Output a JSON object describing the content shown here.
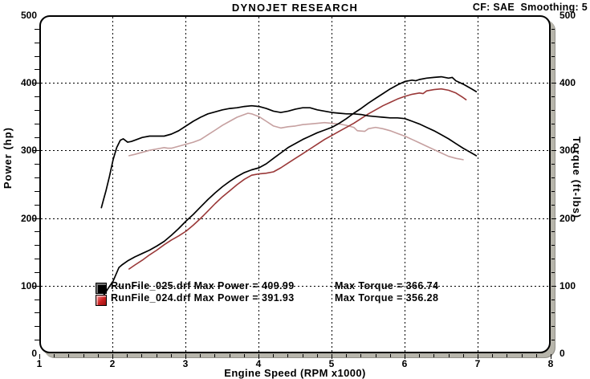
{
  "header": {
    "title": "DYNOJET RESEARCH",
    "cf_smoothing": "CF: SAE  Smoothing: 5"
  },
  "chart_data": {
    "type": "line",
    "title": "DYNOJET RESEARCH",
    "correction_factor": "CF: SAE",
    "smoothing": "Smoothing: 5",
    "xlabel": "Engine Speed (RPM x1000)",
    "ylabel_left": "Power (hp)",
    "ylabel_right": "Torque (ft-lbs)",
    "xlim": [
      1,
      8
    ],
    "ylim_left": [
      0,
      500
    ],
    "ylim_right": [
      0,
      500
    ],
    "x_ticks": [
      1,
      2,
      3,
      4,
      5,
      6,
      7,
      8
    ],
    "y_ticks": [
      0,
      100,
      200,
      300,
      400,
      500
    ],
    "x_minor_step": 0.2,
    "y_minor_step": 20,
    "grid": "dashed-at-major-ticks",
    "legend_position": "inside-lower-left",
    "series": [
      {
        "id": "curve-runfile024-torque",
        "name": "RunFile_024.drf Torque (ft-lbs)",
        "color": "#c6a0a0",
        "width": 1.6,
        "points": [
          [
            2.22,
            293
          ],
          [
            2.3,
            295
          ],
          [
            2.4,
            298
          ],
          [
            2.5,
            301
          ],
          [
            2.6,
            303
          ],
          [
            2.7,
            305
          ],
          [
            2.75,
            304
          ],
          [
            2.8,
            304
          ],
          [
            2.9,
            307
          ],
          [
            3.0,
            310
          ],
          [
            3.1,
            313
          ],
          [
            3.2,
            317
          ],
          [
            3.3,
            324
          ],
          [
            3.4,
            331
          ],
          [
            3.5,
            338
          ],
          [
            3.6,
            344
          ],
          [
            3.7,
            350
          ],
          [
            3.8,
            354
          ],
          [
            3.85,
            356
          ],
          [
            3.9,
            355
          ],
          [
            4.0,
            351
          ],
          [
            4.1,
            344
          ],
          [
            4.2,
            337
          ],
          [
            4.3,
            334
          ],
          [
            4.4,
            336
          ],
          [
            4.5,
            337
          ],
          [
            4.6,
            339
          ],
          [
            4.7,
            340
          ],
          [
            4.8,
            341
          ],
          [
            4.9,
            342
          ],
          [
            5.0,
            341
          ],
          [
            5.1,
            340
          ],
          [
            5.2,
            338
          ],
          [
            5.3,
            335
          ],
          [
            5.35,
            330
          ],
          [
            5.45,
            329
          ],
          [
            5.5,
            333
          ],
          [
            5.6,
            335
          ],
          [
            5.7,
            333
          ],
          [
            5.8,
            330
          ],
          [
            5.9,
            326
          ],
          [
            6.0,
            322
          ],
          [
            6.1,
            317
          ],
          [
            6.2,
            312
          ],
          [
            6.3,
            307
          ],
          [
            6.4,
            302
          ],
          [
            6.5,
            297
          ],
          [
            6.6,
            292
          ],
          [
            6.7,
            289
          ],
          [
            6.8,
            287
          ]
        ]
      },
      {
        "id": "curve-runfile024-power",
        "name": "RunFile_024.drf Power (hp)",
        "color": "#9a3838",
        "width": 1.6,
        "points": [
          [
            2.22,
            125
          ],
          [
            2.3,
            131
          ],
          [
            2.4,
            138
          ],
          [
            2.5,
            146
          ],
          [
            2.6,
            153
          ],
          [
            2.7,
            161
          ],
          [
            2.8,
            168
          ],
          [
            2.9,
            174
          ],
          [
            3.0,
            181
          ],
          [
            3.1,
            190
          ],
          [
            3.2,
            200
          ],
          [
            3.3,
            211
          ],
          [
            3.4,
            222
          ],
          [
            3.5,
            232
          ],
          [
            3.6,
            241
          ],
          [
            3.7,
            250
          ],
          [
            3.8,
            258
          ],
          [
            3.9,
            264
          ],
          [
            4.0,
            266
          ],
          [
            4.1,
            267
          ],
          [
            4.2,
            269
          ],
          [
            4.3,
            275
          ],
          [
            4.4,
            282
          ],
          [
            4.5,
            289
          ],
          [
            4.6,
            296
          ],
          [
            4.7,
            303
          ],
          [
            4.8,
            310
          ],
          [
            4.9,
            317
          ],
          [
            5.0,
            323
          ],
          [
            5.1,
            329
          ],
          [
            5.2,
            335
          ],
          [
            5.3,
            341
          ],
          [
            5.4,
            348
          ],
          [
            5.5,
            355
          ],
          [
            5.6,
            361
          ],
          [
            5.7,
            367
          ],
          [
            5.8,
            372
          ],
          [
            5.9,
            377
          ],
          [
            6.0,
            381
          ],
          [
            6.1,
            384
          ],
          [
            6.2,
            386
          ],
          [
            6.25,
            385
          ],
          [
            6.3,
            389
          ],
          [
            6.4,
            391
          ],
          [
            6.5,
            392
          ],
          [
            6.6,
            390
          ],
          [
            6.7,
            386
          ],
          [
            6.8,
            379
          ],
          [
            6.84,
            376
          ]
        ]
      },
      {
        "id": "curve-runfile025-torque",
        "name": "RunFile_025.drf Torque (ft-lbs)",
        "color": "#000000",
        "width": 1.7,
        "points": [
          [
            1.84,
            216
          ],
          [
            1.87,
            228
          ],
          [
            1.9,
            240
          ],
          [
            1.95,
            262
          ],
          [
            2.0,
            287
          ],
          [
            2.05,
            305
          ],
          [
            2.1,
            316
          ],
          [
            2.14,
            318
          ],
          [
            2.2,
            313
          ],
          [
            2.25,
            314
          ],
          [
            2.3,
            316
          ],
          [
            2.4,
            320
          ],
          [
            2.5,
            322
          ],
          [
            2.6,
            322
          ],
          [
            2.7,
            322
          ],
          [
            2.8,
            325
          ],
          [
            2.9,
            330
          ],
          [
            3.0,
            337
          ],
          [
            3.1,
            344
          ],
          [
            3.2,
            350
          ],
          [
            3.3,
            355
          ],
          [
            3.4,
            358
          ],
          [
            3.5,
            361
          ],
          [
            3.6,
            363
          ],
          [
            3.7,
            364
          ],
          [
            3.8,
            366
          ],
          [
            3.9,
            367
          ],
          [
            4.0,
            366
          ],
          [
            4.1,
            363
          ],
          [
            4.2,
            359
          ],
          [
            4.3,
            357
          ],
          [
            4.4,
            359
          ],
          [
            4.5,
            362
          ],
          [
            4.6,
            364
          ],
          [
            4.7,
            364
          ],
          [
            4.8,
            361
          ],
          [
            4.9,
            359
          ],
          [
            5.0,
            357
          ],
          [
            5.1,
            356
          ],
          [
            5.2,
            355
          ],
          [
            5.3,
            355
          ],
          [
            5.4,
            354
          ],
          [
            5.5,
            352
          ],
          [
            5.6,
            351
          ],
          [
            5.7,
            350
          ],
          [
            5.8,
            349
          ],
          [
            5.9,
            349
          ],
          [
            6.0,
            348
          ],
          [
            6.1,
            344
          ],
          [
            6.2,
            340
          ],
          [
            6.3,
            335
          ],
          [
            6.4,
            330
          ],
          [
            6.5,
            324
          ],
          [
            6.6,
            318
          ],
          [
            6.7,
            311
          ],
          [
            6.8,
            304
          ],
          [
            6.9,
            298
          ],
          [
            6.98,
            293
          ]
        ]
      },
      {
        "id": "curve-runfile025-power",
        "name": "RunFile_025.drf Power (hp)",
        "color": "#000000",
        "width": 1.7,
        "points": [
          [
            1.81,
            75
          ],
          [
            1.85,
            83
          ],
          [
            1.9,
            91
          ],
          [
            1.95,
            99
          ],
          [
            2.0,
            107
          ],
          [
            2.04,
            117
          ],
          [
            2.08,
            127
          ],
          [
            2.12,
            131
          ],
          [
            2.2,
            137
          ],
          [
            2.3,
            143
          ],
          [
            2.4,
            148
          ],
          [
            2.5,
            153
          ],
          [
            2.6,
            159
          ],
          [
            2.7,
            166
          ],
          [
            2.8,
            175
          ],
          [
            2.9,
            185
          ],
          [
            3.0,
            196
          ],
          [
            3.1,
            206
          ],
          [
            3.2,
            217
          ],
          [
            3.3,
            228
          ],
          [
            3.4,
            238
          ],
          [
            3.5,
            247
          ],
          [
            3.6,
            255
          ],
          [
            3.7,
            262
          ],
          [
            3.8,
            268
          ],
          [
            3.9,
            272
          ],
          [
            4.0,
            275
          ],
          [
            4.1,
            281
          ],
          [
            4.2,
            289
          ],
          [
            4.3,
            297
          ],
          [
            4.4,
            305
          ],
          [
            4.5,
            311
          ],
          [
            4.6,
            317
          ],
          [
            4.7,
            322
          ],
          [
            4.8,
            327
          ],
          [
            4.9,
            331
          ],
          [
            5.0,
            335
          ],
          [
            5.1,
            341
          ],
          [
            5.2,
            348
          ],
          [
            5.3,
            356
          ],
          [
            5.4,
            363
          ],
          [
            5.5,
            371
          ],
          [
            5.6,
            378
          ],
          [
            5.7,
            385
          ],
          [
            5.8,
            392
          ],
          [
            5.9,
            398
          ],
          [
            6.0,
            403
          ],
          [
            6.1,
            405
          ],
          [
            6.15,
            404
          ],
          [
            6.2,
            406
          ],
          [
            6.3,
            408
          ],
          [
            6.4,
            409
          ],
          [
            6.5,
            410
          ],
          [
            6.6,
            408
          ],
          [
            6.65,
            409
          ],
          [
            6.7,
            404
          ],
          [
            6.8,
            399
          ],
          [
            6.9,
            393
          ],
          [
            6.98,
            388
          ]
        ]
      }
    ],
    "legend": [
      {
        "swatch": "#cc2222",
        "file": "RunFile_024.drf",
        "label": "RunFile_024.drf Max Power = 391.93",
        "torque_label": "Max Torque = 356.28",
        "max_power": 391.93,
        "max_torque": 356.28
      },
      {
        "swatch": "#000000",
        "file": "RunFile_025.drf",
        "label": "RunFile_025.drf Max Power = 409.99",
        "torque_label": "Max Torque = 366.74",
        "max_power": 409.99,
        "max_torque": 366.74
      }
    ]
  }
}
